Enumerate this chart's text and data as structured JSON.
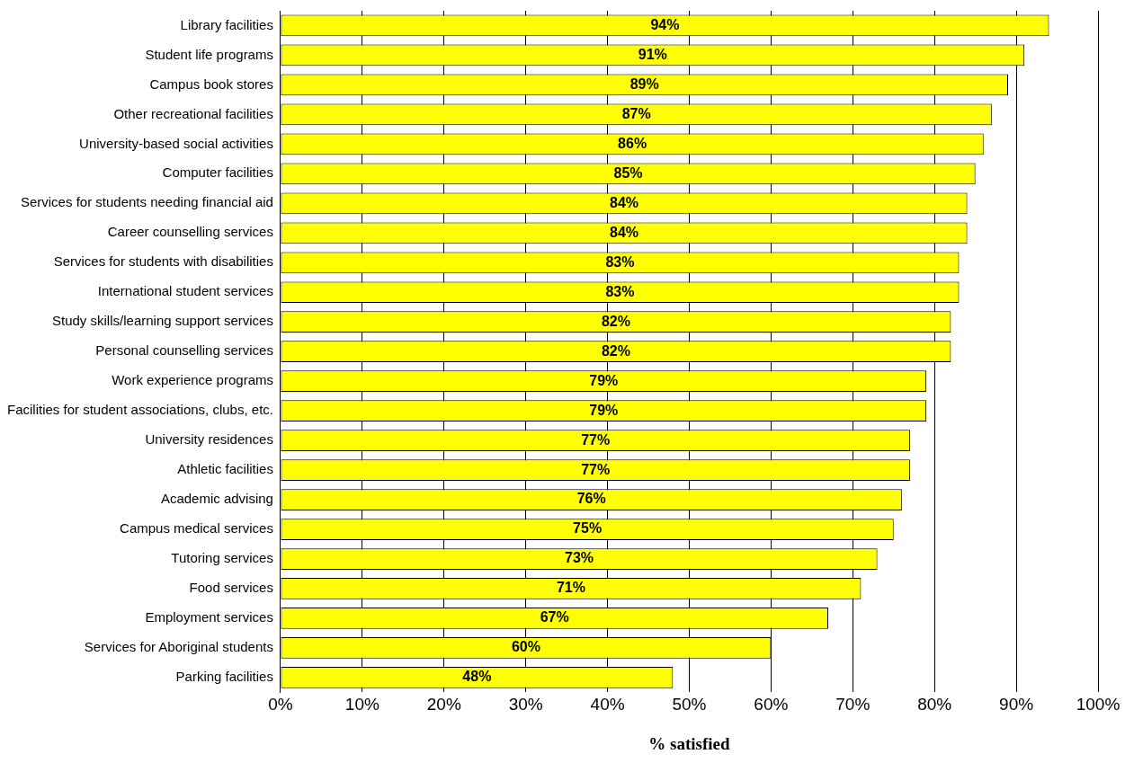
{
  "chart_data": {
    "type": "bar",
    "orientation": "horizontal",
    "xlabel": "% satisfied",
    "categories": [
      "Library facilities",
      "Student life programs",
      "Campus book stores",
      "Other recreational facilities",
      "University-based social activities",
      "Computer facilities",
      "Services for students needing financial aid",
      "Career counselling services",
      "Services for students with disabilities",
      "International student services",
      "Study skills/learning support services",
      "Personal counselling services",
      "Work experience programs",
      "Facilities for student associations, clubs, etc.",
      "University residences",
      "Athletic facilities",
      "Academic advising",
      "Campus medical services",
      "Tutoring services",
      "Food services",
      "Employment services",
      "Services for Aboriginal students",
      "Parking facilities"
    ],
    "values": [
      94,
      91,
      89,
      87,
      86,
      85,
      84,
      84,
      83,
      83,
      82,
      82,
      79,
      79,
      77,
      77,
      76,
      75,
      73,
      71,
      67,
      60,
      48
    ],
    "value_labels": [
      "94%",
      "91%",
      "89%",
      "87%",
      "86%",
      "85%",
      "84%",
      "84%",
      "83%",
      "83%",
      "82%",
      "82%",
      "79%",
      "79%",
      "77%",
      "77%",
      "76%",
      "75%",
      "73%",
      "71%",
      "67%",
      "60%",
      "48%"
    ],
    "color": "#ffff00",
    "xlim": [
      0,
      100
    ],
    "xticks": [
      {
        "value": 0,
        "label": "0%"
      },
      {
        "value": 10,
        "label": "10%"
      },
      {
        "value": 20,
        "label": "20%"
      },
      {
        "value": 30,
        "label": "30%"
      },
      {
        "value": 40,
        "label": "40%"
      },
      {
        "value": 50,
        "label": "50%"
      },
      {
        "value": 60,
        "label": "60%"
      },
      {
        "value": 70,
        "label": "70%"
      },
      {
        "value": 80,
        "label": "80%"
      },
      {
        "value": 90,
        "label": "90%"
      },
      {
        "value": 100,
        "label": "100%"
      }
    ],
    "grid": "x"
  }
}
